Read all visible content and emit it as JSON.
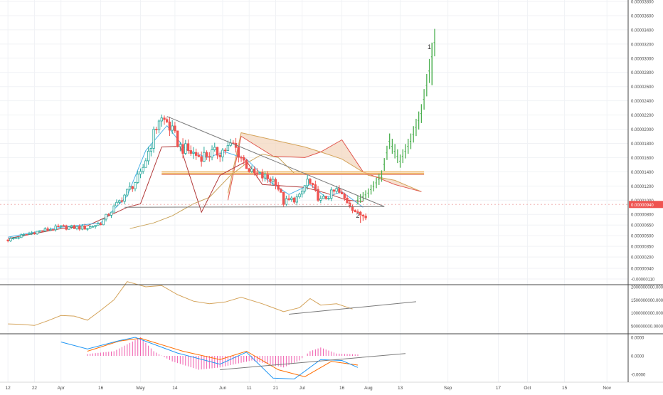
{
  "colors": {
    "background": "#ffffff",
    "grid": "#f0f2f5",
    "axis_text": "#4a4a4a",
    "up_candle": "#26a69a",
    "down_candle": "#ef5350",
    "projection_up": "#4caf50",
    "projection_down": "#ef5350",
    "cloud_fill": "#f3d7bf",
    "cloud_span_a": "#d4a35a",
    "cloud_span_b": "#e0574f",
    "tenkan": "#4fb3e8",
    "kijun": "#b23a3a",
    "chikou": "#c9a35a",
    "trendline": "#7a7a7a",
    "resistance": "#e8a33c",
    "support_dashed": "#f2b5b5",
    "price_label_bg": "#ef5350",
    "obv_line": "#d4a35a",
    "macd_line": "#2196f3",
    "signal_line": "#ff6d00",
    "histogram": "#ef5cad"
  },
  "chart_data": [
    {
      "type": "candlestick",
      "name": "price",
      "x_axis": {
        "labels": [
          "12",
          "22",
          "Apr",
          "16",
          "May",
          "14",
          "Jun",
          "11",
          "21",
          "Jul",
          "16",
          "Aug",
          "13",
          "Sep",
          "17",
          "Oct",
          "15",
          "Nov"
        ],
        "day_index": [
          0,
          10,
          20,
          35,
          50,
          63,
          81,
          91,
          101,
          111,
          126,
          136,
          148,
          166,
          185,
          196,
          210,
          226
        ],
        "range": [
          -3,
          234
        ]
      },
      "y_axis": {
        "scale": "linear",
        "ticks": [
          3.8e-05,
          3.6e-05,
          3.4e-05,
          3.2e-05,
          3e-05,
          2.8e-05,
          2.6e-05,
          2.4e-05,
          2.2e-05,
          2e-05,
          1.8e-05,
          1.6e-05,
          1.4e-05,
          1.2e-05,
          1e-05,
          8e-06,
          6.5e-06,
          5e-06,
          3.5e-06,
          2e-06,
          4e-07,
          -1.1e-06
        ],
        "tick_labels": [
          "0.00003800",
          "0.00003600",
          "0.00003400",
          "0.00003200",
          "0.00003000",
          "0.00002800",
          "0.00002600",
          "0.00002400",
          "0.00002200",
          "0.00002000",
          "0.00001800",
          "0.00001600",
          "0.00001400",
          "0.00001200",
          "0.00001000",
          "0.00000800",
          "0.00000650",
          "0.00000500",
          "0.00000350",
          "0.00000200",
          "0.00000040",
          "-0.00000110"
        ]
      },
      "last_price": 9.4e-06,
      "last_price_label": "0.00000940",
      "wave_labels": [
        {
          "text": "1",
          "day": 159,
          "price": 3.13e-05
        },
        {
          "text": "2",
          "day": 132,
          "price": 7.5e-06
        }
      ],
      "keyframes": [
        {
          "day": 0,
          "price": 4.4e-06
        },
        {
          "day": 10,
          "price": 5.5e-06
        },
        {
          "day": 20,
          "price": 6.2e-06
        },
        {
          "day": 30,
          "price": 6.1e-06
        },
        {
          "day": 35,
          "price": 6.8e-06
        },
        {
          "day": 42,
          "price": 9.8e-06
        },
        {
          "day": 50,
          "price": 1.35e-05
        },
        {
          "day": 57,
          "price": 2.15e-05
        },
        {
          "day": 60,
          "price": 2.1e-05
        },
        {
          "day": 65,
          "price": 1.75e-05
        },
        {
          "day": 72,
          "price": 1.62e-05
        },
        {
          "day": 80,
          "price": 1.68e-05
        },
        {
          "day": 85,
          "price": 1.78e-05
        },
        {
          "day": 92,
          "price": 1.38e-05
        },
        {
          "day": 101,
          "price": 1.27e-05
        },
        {
          "day": 104,
          "price": 9.7e-06
        },
        {
          "day": 110,
          "price": 1.04e-05
        },
        {
          "day": 113,
          "price": 1.28e-05
        },
        {
          "day": 118,
          "price": 9.9e-06
        },
        {
          "day": 124,
          "price": 1.14e-05
        },
        {
          "day": 129,
          "price": 9.4e-06
        },
        {
          "day": 132,
          "price": 8e-06
        },
        {
          "day": 135,
          "price": 7.9e-06
        }
      ],
      "projection_keyframes": [
        {
          "day": 132,
          "price": 1e-05
        },
        {
          "day": 136,
          "price": 1.1e-05
        },
        {
          "day": 141,
          "price": 1.34e-05
        },
        {
          "day": 144,
          "price": 1.83e-05
        },
        {
          "day": 148,
          "price": 1.55e-05
        },
        {
          "day": 152,
          "price": 1.83e-05
        },
        {
          "day": 156,
          "price": 2.22e-05
        },
        {
          "day": 161,
          "price": 3.22e-05
        }
      ],
      "ichimoku_cloud": {
        "span_a": [
          [
            83,
            1.1e-05
          ],
          [
            88,
            1.95e-05
          ],
          [
            100,
            1.85e-05
          ],
          [
            112,
            1.75e-05
          ],
          [
            118,
            1.68e-05
          ],
          [
            126,
            1.58e-05
          ],
          [
            136,
            1.35e-05
          ],
          [
            146,
            1.28e-05
          ],
          [
            156,
            1.12e-05
          ]
        ],
        "span_b": [
          [
            83,
            1e-05
          ],
          [
            88,
            1.9e-05
          ],
          [
            100,
            1.62e-05
          ],
          [
            112,
            1.6e-05
          ],
          [
            118,
            1.68e-05
          ],
          [
            126,
            1.85e-05
          ],
          [
            134,
            1.4e-05
          ],
          [
            146,
            1.22e-05
          ],
          [
            156,
            1.12e-05
          ]
        ]
      },
      "tenkan": [
        [
          0,
          4.8e-06
        ],
        [
          20,
          6.2e-06
        ],
        [
          35,
          6.8e-06
        ],
        [
          45,
          1.06e-05
        ],
        [
          52,
          1.7e-05
        ],
        [
          60,
          2.05e-05
        ],
        [
          67,
          1.72e-05
        ],
        [
          75,
          1.6e-05
        ],
        [
          82,
          1.68e-05
        ],
        [
          90,
          1.58e-05
        ],
        [
          98,
          1.28e-05
        ],
        [
          106,
          1.08e-05
        ],
        [
          114,
          1.22e-05
        ],
        [
          120,
          1.04e-05
        ],
        [
          126,
          1.12e-05
        ],
        [
          134,
          9e-06
        ]
      ],
      "kijun": [
        [
          0,
          4.6e-06
        ],
        [
          20,
          6e-06
        ],
        [
          30,
          6.4e-06
        ],
        [
          45,
          9e-06
        ],
        [
          50,
          9.5e-06
        ],
        [
          58,
          1.75e-05
        ],
        [
          65,
          1.76e-05
        ],
        [
          73,
          8.3e-06
        ],
        [
          80,
          1.35e-05
        ],
        [
          90,
          1.55e-05
        ],
        [
          96,
          1.22e-05
        ],
        [
          104,
          1.2e-05
        ],
        [
          112,
          1.18e-05
        ],
        [
          120,
          1.1e-05
        ],
        [
          128,
          1e-05
        ],
        [
          134,
          9.8e-06
        ]
      ],
      "chikou": [
        [
          46,
          6e-06
        ],
        [
          55,
          6.8e-06
        ],
        [
          62,
          7.8e-06
        ],
        [
          70,
          9.5e-06
        ],
        [
          76,
          1.04e-05
        ],
        [
          84,
          1.35e-05
        ],
        [
          90,
          1.52e-05
        ],
        [
          96,
          1.65e-05
        ],
        [
          102,
          1.6e-05
        ],
        [
          108,
          1.38e-05
        ]
      ],
      "trendlines": [
        {
          "kind": "descending",
          "from": [
            60,
            2.18e-05
          ],
          "to": [
            142,
            9.1e-06
          ]
        },
        {
          "kind": "support",
          "from": [
            44,
            9e-06
          ],
          "to": [
            142,
            9.1e-06
          ]
        }
      ],
      "resistance_zone": {
        "from_day": 58,
        "to_day": 157,
        "prices": [
          1.38e-05,
          1.4e-05,
          1.36e-05
        ]
      },
      "last_price_line": true
    },
    {
      "type": "line",
      "name": "obv",
      "y_axis": {
        "ticks": [
          2000000000,
          1500000000,
          1000000000,
          500000000
        ],
        "tick_labels": [
          "2000000000.0000",
          "1500000000.0000",
          "1000000000.0000",
          "500000000.0000"
        ]
      },
      "keyframes": [
        [
          0,
          580000000
        ],
        [
          5,
          560000000
        ],
        [
          10,
          520000000
        ],
        [
          15,
          700000000
        ],
        [
          20,
          900000000
        ],
        [
          25,
          880000000
        ],
        [
          30,
          720000000
        ],
        [
          35,
          1100000000
        ],
        [
          40,
          1500000000
        ],
        [
          45,
          2200000000
        ],
        [
          52,
          2000000000
        ],
        [
          58,
          2050000000
        ],
        [
          64,
          1700000000
        ],
        [
          70,
          1450000000
        ],
        [
          76,
          1350000000
        ],
        [
          82,
          1420000000
        ],
        [
          88,
          1600000000
        ],
        [
          96,
          1350000000
        ],
        [
          104,
          1050000000
        ],
        [
          110,
          1200000000
        ],
        [
          114,
          1550000000
        ],
        [
          118,
          1300000000
        ],
        [
          124,
          1350000000
        ],
        [
          130,
          1150000000
        ]
      ],
      "trendline": {
        "from": [
          106,
          950000000
        ],
        "to": [
          154,
          1430000000
        ]
      }
    },
    {
      "type": "macd",
      "name": "macd",
      "y_axis": {
        "ticks": [
          4e-07,
          0.0,
          -4e-07
        ],
        "tick_labels": [
          "0.0000",
          "0.0000",
          "-0.0000"
        ]
      },
      "macd_keyframes": [
        [
          20,
          3e-07
        ],
        [
          30,
          1.5e-07
        ],
        [
          42,
          3.3e-07
        ],
        [
          48,
          4e-07
        ],
        [
          64,
          6e-08
        ],
        [
          80,
          -1.8e-07
        ],
        [
          90,
          8e-08
        ],
        [
          100,
          -4.8e-07
        ],
        [
          108,
          -5e-07
        ],
        [
          118,
          -8e-08
        ],
        [
          126,
          -1e-07
        ],
        [
          132,
          -2.5e-07
        ]
      ],
      "signal_keyframes": [
        [
          30,
          1e-07
        ],
        [
          42,
          3.2e-07
        ],
        [
          50,
          3.8e-07
        ],
        [
          66,
          1e-07
        ],
        [
          80,
          -8e-08
        ],
        [
          90,
          1e-07
        ],
        [
          102,
          -3e-07
        ],
        [
          112,
          -4.5e-07
        ],
        [
          122,
          -1.2e-07
        ],
        [
          132,
          -2e-07
        ]
      ],
      "histogram_keyframes": [
        [
          30,
          4e-08
        ],
        [
          40,
          1e-07
        ],
        [
          50,
          4e-07
        ],
        [
          55,
          1e-07
        ],
        [
          62,
          -1.2e-07
        ],
        [
          72,
          -3e-07
        ],
        [
          80,
          -2.5e-07
        ],
        [
          92,
          -1e-07
        ],
        [
          104,
          -2.5e-07
        ],
        [
          110,
          -1e-07
        ],
        [
          114,
          1e-07
        ],
        [
          118,
          1.8e-07
        ],
        [
          124,
          5e-08
        ],
        [
          132,
          3e-08
        ]
      ],
      "trendline": {
        "from": [
          80,
          -3e-07
        ],
        "to": [
          150,
          5e-08
        ]
      }
    }
  ]
}
